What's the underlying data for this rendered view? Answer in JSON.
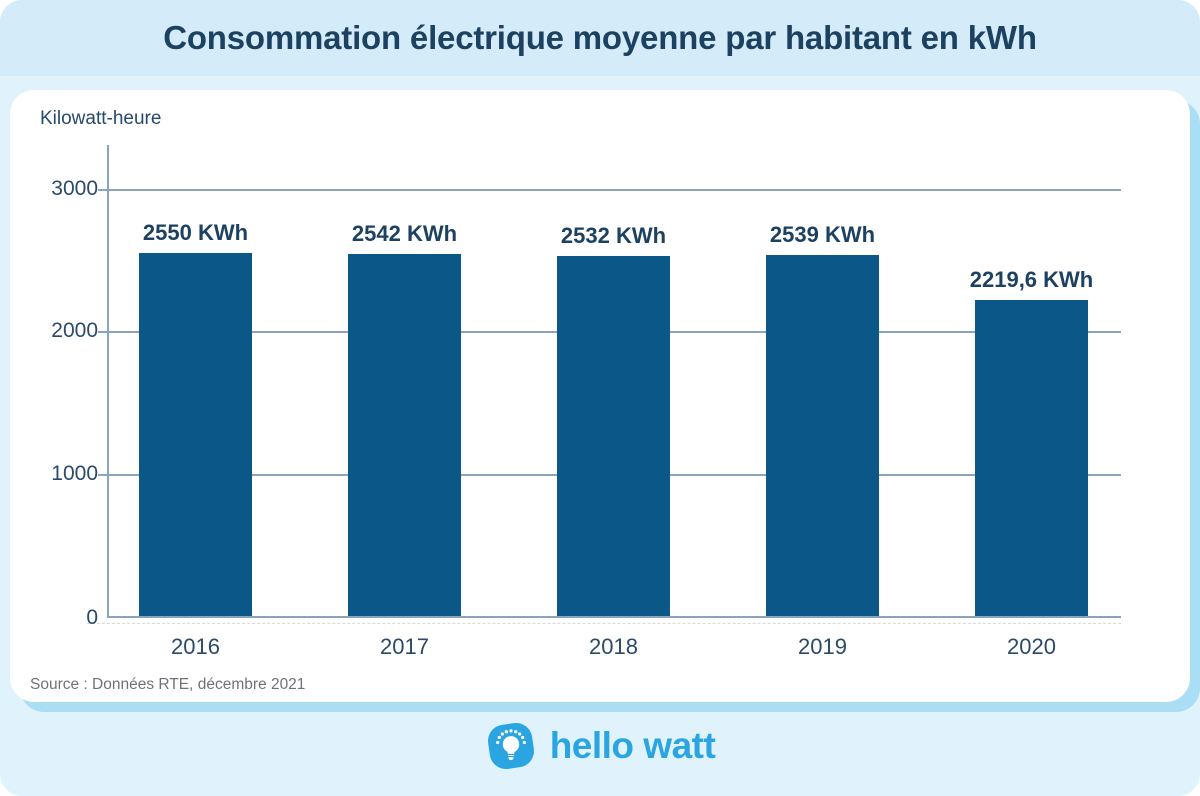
{
  "title": "Consommation électrique moyenne par habitant en kWh",
  "source": "Source : Données RTE, décembre 2021",
  "brand": {
    "name": "hello watt"
  },
  "colors": {
    "bar": "#0a5788",
    "navy_text": "#1d4161",
    "grid": "#8ba4bd",
    "band": "#d4ecfa",
    "page_bg": "#e0f3fd",
    "card_shadow": "#a9def5",
    "brand_blue": "#2aa5e2",
    "source_gray": "#6f7278"
  },
  "chart_data": {
    "type": "bar",
    "title": "Consommation électrique moyenne par habitant en kWh",
    "ylabel": "Kilowatt-heure",
    "xlabel": "",
    "categories": [
      "2016",
      "2017",
      "2018",
      "2019",
      "2020"
    ],
    "values": [
      2550,
      2542,
      2532,
      2539,
      2219.6
    ],
    "bar_labels": [
      "2550 KWh",
      "2542 KWh",
      "2532 KWh",
      "2539 KWh",
      "2219,6 KWh"
    ],
    "yticks": [
      0,
      1000,
      2000,
      3000
    ],
    "ylim": [
      0,
      3310
    ],
    "grid": true,
    "legend": false,
    "bar_color": "#0a5788"
  }
}
